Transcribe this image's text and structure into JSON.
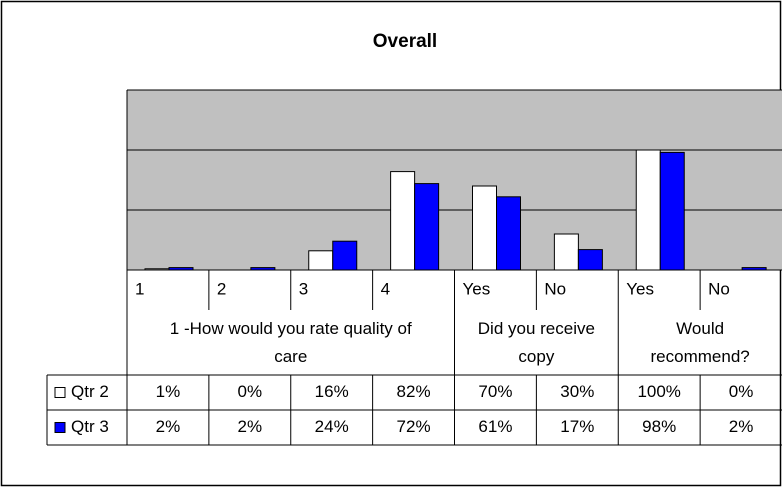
{
  "chart_data": {
    "type": "bar",
    "title": "Overall",
    "categories": [
      "1",
      "2",
      "3",
      "4",
      "Yes",
      "No",
      "Yes",
      "No"
    ],
    "groups": [
      {
        "label": "1 -How would you rate quality of care",
        "span": 4
      },
      {
        "label": "Did you receive copy",
        "span": 2
      },
      {
        "label": "Would recommend?",
        "span": 2
      }
    ],
    "series": [
      {
        "name": "Qtr 2",
        "color": "#ffffff",
        "values": [
          1,
          0,
          16,
          82,
          70,
          30,
          100,
          0
        ],
        "value_labels": [
          "1%",
          "0%",
          "16%",
          "82%",
          "70%",
          "30%",
          "100%",
          "0%"
        ]
      },
      {
        "name": "Qtr 3",
        "color": "#0000ff",
        "values": [
          2,
          2,
          24,
          72,
          61,
          17,
          98,
          2
        ],
        "value_labels": [
          "2%",
          "2%",
          "24%",
          "72%",
          "61%",
          "17%",
          "98%",
          "2%"
        ]
      }
    ],
    "ylim": [
      0,
      150
    ],
    "yticks": [
      0,
      50,
      100,
      150
    ],
    "grid": true,
    "plot_color": "#c0c0c0"
  }
}
